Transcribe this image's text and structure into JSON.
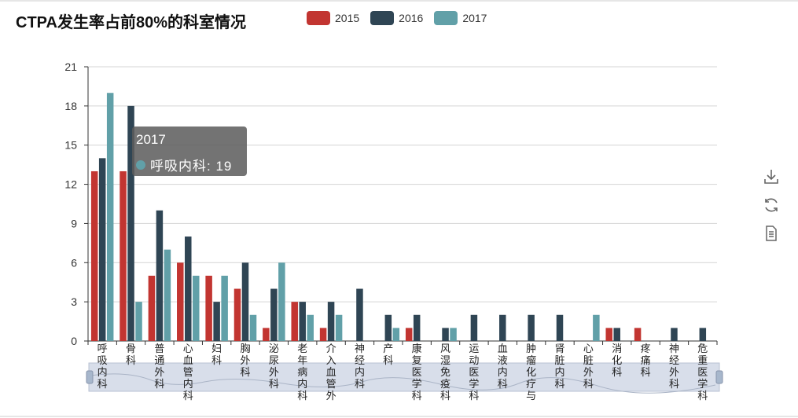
{
  "title": "CTPA发生率占前80%的科室情况",
  "legend": [
    {
      "label": "2015",
      "color": "#c23531"
    },
    {
      "label": "2016",
      "color": "#2f4554"
    },
    {
      "label": "2017",
      "color": "#61a0a8"
    }
  ],
  "tooltip": {
    "series": "2017",
    "line": "呼吸内科: 19",
    "color": "#61a0a8"
  },
  "toolbox": [
    {
      "name": "download-icon"
    },
    {
      "name": "refresh-icon"
    },
    {
      "name": "data-view-icon"
    }
  ],
  "chart_data": {
    "type": "bar",
    "title": "CTPA发生率占前80%的科室情况",
    "categories": [
      "呼吸内科",
      "骨科",
      "普通外科",
      "心血管内科",
      "妇科",
      "胸外科",
      "泌尿外科",
      "老年病内科",
      "介入血管外",
      "神经内科",
      "产科",
      "康复医学科",
      "风湿免疫科",
      "运动医学科",
      "血液内科",
      "肿瘤化疗与",
      "肾脏内科",
      "心脏外科",
      "消化科",
      "疼痛科",
      "神经外科",
      "危重医学科"
    ],
    "axis_labels": [
      "呼吸内科",
      "骨科",
      "普通外科",
      "心血管内科",
      "妇科",
      "胸外科",
      "泌尿外科",
      "老年病内科",
      "介入血管外",
      "神经内科",
      "产科",
      "康复医学科",
      "风湿免疫科",
      "运动医学科",
      "血液内科",
      "肿瘤化疗与",
      "肾脏内科",
      "心脏外科",
      "消化科",
      "疼痛科",
      "神经外科",
      "危重医学科"
    ],
    "series": [
      {
        "name": "2015",
        "color": "#c23531",
        "values": [
          13,
          13,
          5,
          6,
          5,
          4,
          1,
          3,
          1,
          0,
          0,
          1,
          0,
          0,
          0,
          0,
          0,
          0,
          1,
          1,
          0,
          0
        ]
      },
      {
        "name": "2016",
        "color": "#2f4554",
        "values": [
          14,
          18,
          10,
          8,
          3,
          6,
          4,
          3,
          3,
          4,
          2,
          2,
          1,
          2,
          2,
          2,
          2,
          0,
          1,
          0,
          1,
          1
        ]
      },
      {
        "name": "2017",
        "color": "#61a0a8",
        "values": [
          19,
          3,
          7,
          5,
          5,
          2,
          6,
          2,
          2,
          0,
          1,
          0,
          1,
          0,
          0,
          0,
          0,
          2,
          0,
          0,
          0,
          0
        ]
      }
    ],
    "ylim": [
      0,
      21
    ],
    "yticks": [
      0,
      3,
      6,
      9,
      12,
      15,
      18,
      21
    ],
    "grid": true,
    "legend_position": "top",
    "datazoom": "slider-bottom"
  }
}
